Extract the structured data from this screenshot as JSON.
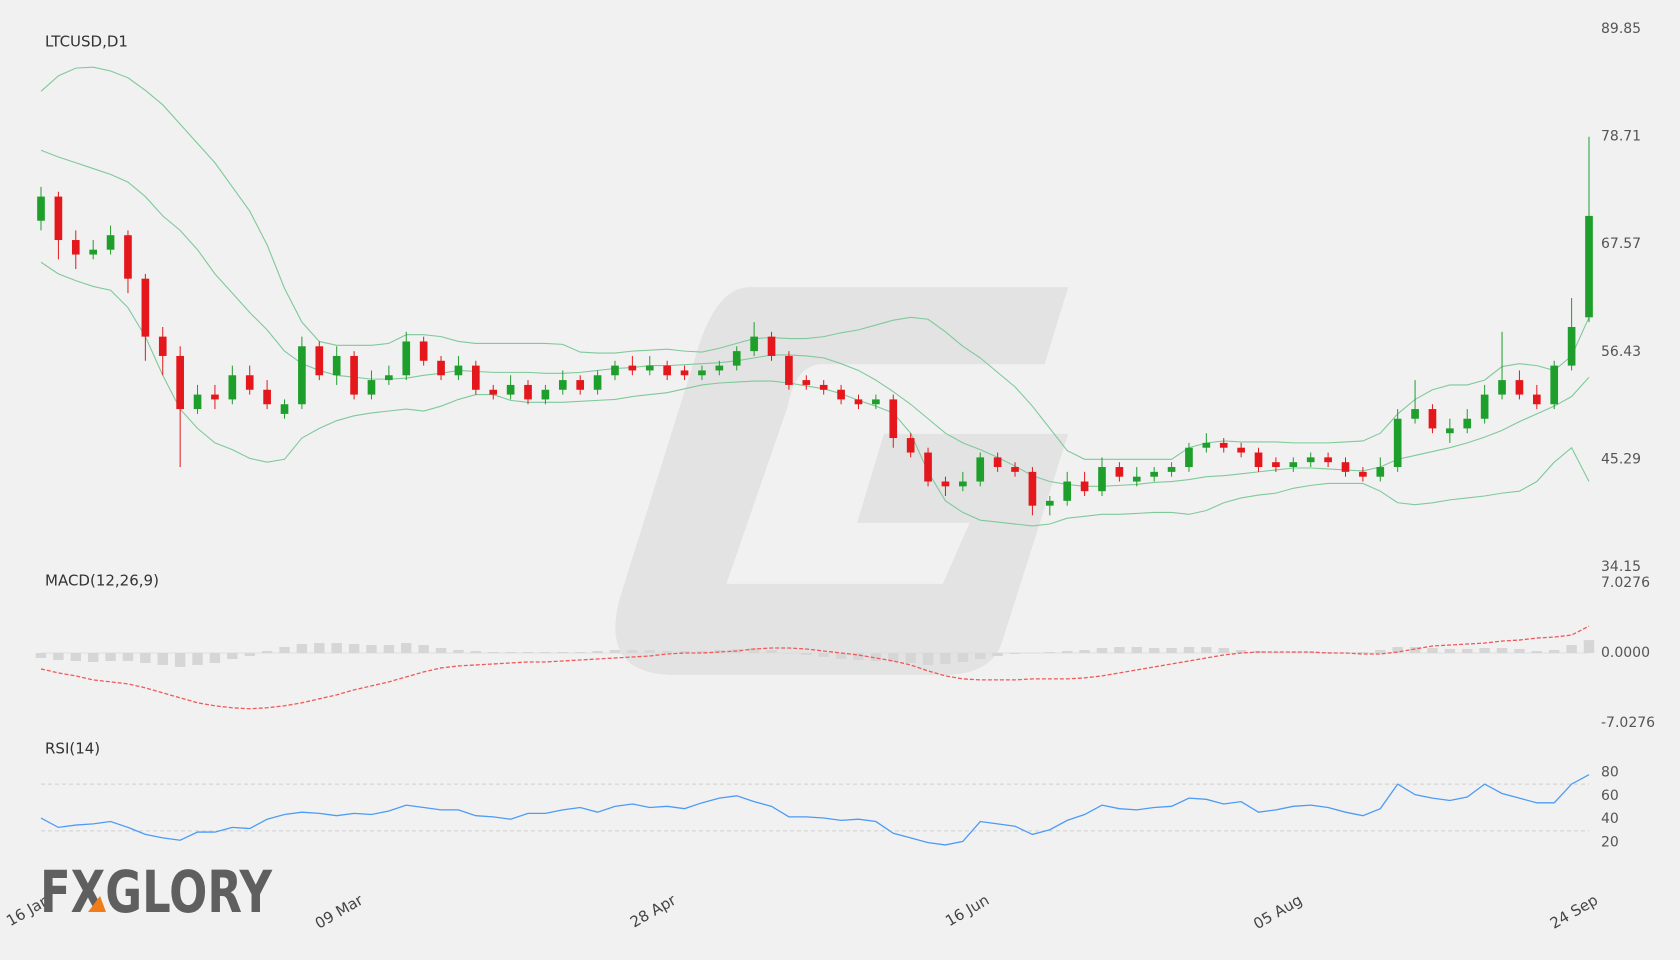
{
  "chart_data": [
    {
      "type": "candlestick",
      "title": "LTCUSD,D1",
      "categories": [
        "16 Jan",
        null,
        null,
        null,
        null,
        null,
        null,
        null,
        null,
        null,
        null,
        null,
        null,
        null,
        null,
        null,
        null,
        null,
        "09 Mar",
        null,
        null,
        null,
        null,
        null,
        null,
        null,
        null,
        null,
        null,
        null,
        null,
        null,
        null,
        null,
        null,
        null,
        "28 Apr",
        null,
        null,
        null,
        null,
        null,
        null,
        null,
        null,
        null,
        null,
        null,
        null,
        null,
        null,
        null,
        null,
        null,
        "16 Jun",
        null,
        null,
        null,
        null,
        null,
        null,
        null,
        null,
        null,
        null,
        null,
        null,
        null,
        null,
        null,
        null,
        null,
        "05 Aug",
        null,
        null,
        null,
        null,
        null,
        null,
        null,
        null,
        null,
        null,
        null,
        null,
        null,
        null,
        null,
        null,
        "24 Sep"
      ],
      "open": [
        70,
        72.5,
        68,
        66.5,
        67,
        68.5,
        64,
        58,
        56,
        50.5,
        52,
        51.5,
        54,
        52.5,
        50,
        51,
        57,
        54,
        56,
        52,
        53.5,
        54,
        57.5,
        55.5,
        54,
        55,
        52.5,
        52,
        53,
        51.5,
        52.5,
        53.5,
        52.5,
        54,
        55,
        54.5,
        55,
        54.5,
        54,
        54.5,
        55,
        56.5,
        58,
        56,
        53.5,
        53,
        52.5,
        51.5,
        51,
        51.5,
        47.5,
        46,
        43,
        42.5,
        43,
        45.5,
        44.5,
        44,
        40.5,
        41,
        43,
        42,
        44.5,
        43,
        43.5,
        44,
        44.5,
        46.5,
        47,
        46.5,
        46,
        45,
        44.5,
        45,
        45.5,
        45,
        44,
        43.5,
        44.5,
        49.5,
        50.5,
        48,
        48.5,
        49.5,
        52,
        53.5,
        52,
        51,
        55,
        60
      ],
      "high": [
        73.5,
        73,
        69,
        68,
        69.5,
        69,
        64.5,
        59,
        57,
        53,
        53,
        55,
        55,
        53.5,
        51.5,
        58,
        57.5,
        57,
        56.5,
        54.5,
        55,
        58.5,
        58,
        56,
        56,
        55.5,
        53,
        54,
        53.5,
        53,
        54.5,
        54,
        54.5,
        55.5,
        56,
        56,
        55.5,
        55,
        55,
        55.5,
        57,
        59.5,
        58.5,
        56.5,
        54,
        53.5,
        53,
        52,
        52,
        52,
        48,
        46.5,
        43.5,
        44,
        46,
        46,
        45,
        44.5,
        41.5,
        44,
        44,
        45.5,
        45,
        44.5,
        44.5,
        45,
        47,
        48,
        47.5,
        47,
        46.5,
        45.5,
        45.5,
        46,
        46,
        45.5,
        44.5,
        45.5,
        50.5,
        53.5,
        51,
        49.5,
        50.5,
        53,
        58.5,
        54.5,
        53,
        55.5,
        62,
        78.7
      ],
      "low": [
        69,
        66,
        65,
        66,
        66.5,
        62.5,
        55.5,
        54,
        44.5,
        50,
        50.5,
        51,
        52,
        50.5,
        49.5,
        50.5,
        53.5,
        53,
        51.5,
        51.5,
        53,
        53.5,
        55,
        53.5,
        53.5,
        52,
        51.5,
        51.5,
        51,
        51,
        52,
        52,
        52,
        53.5,
        54,
        54,
        53.5,
        53.5,
        53.5,
        54,
        54.5,
        56,
        55.5,
        52.5,
        52.5,
        52,
        51,
        50.5,
        50.5,
        46.5,
        45.5,
        42.5,
        41.5,
        42,
        42.5,
        44,
        43.5,
        39.5,
        39.5,
        40.5,
        41.5,
        41.5,
        43,
        42.5,
        43,
        43.5,
        44,
        46,
        46,
        45.5,
        44,
        44,
        44,
        44.5,
        44.5,
        43.5,
        43,
        43,
        44,
        49,
        48,
        47,
        48,
        49,
        51.5,
        51.5,
        50.5,
        50.5,
        54.5,
        59.5
      ],
      "close": [
        72.5,
        68,
        66.5,
        67,
        68.5,
        64,
        58,
        56,
        50.5,
        52,
        51.5,
        54,
        52.5,
        51,
        51,
        57,
        54,
        56,
        52,
        53.5,
        54,
        57.5,
        55.5,
        54,
        55,
        52.5,
        52,
        53,
        51.5,
        52.5,
        53.5,
        52.5,
        54,
        55,
        54.5,
        55,
        54,
        54,
        54.5,
        55,
        56.5,
        58,
        56,
        53,
        53,
        52.5,
        51.5,
        51,
        51.5,
        47.5,
        46,
        43,
        42.5,
        43,
        45.5,
        44.5,
        44,
        40.5,
        41,
        43,
        42,
        44.5,
        43.5,
        43.5,
        44,
        44.5,
        46.5,
        47,
        46.5,
        46,
        44.5,
        44.5,
        45,
        45.5,
        45,
        44,
        43.5,
        44.5,
        49.5,
        50.5,
        48.5,
        48.5,
        49.5,
        52,
        53.5,
        52,
        51,
        55,
        59,
        70.5
      ],
      "up_color": "#1e9e2a",
      "down_color": "#e3171c",
      "bands": [
        {
          "color": "#7fc99a",
          "values": [
            83.4,
            85,
            85.8,
            85.9,
            85.5,
            84.8,
            83.5,
            82,
            80,
            78,
            76,
            73.5,
            71,
            67.5,
            63,
            59.5,
            57.5,
            57.1,
            57.1,
            57.1,
            57.3,
            58.2,
            58.2,
            58,
            57.5,
            57.3,
            57.3,
            57.3,
            57.3,
            57.3,
            57.2,
            56.4,
            56.3,
            56.3,
            56.5,
            56.6,
            56.7,
            56.5,
            56.4,
            56.8,
            57.3,
            57.8,
            57.9,
            57.8,
            57.8,
            58,
            58.4,
            58.7,
            59.2,
            59.7,
            60,
            59.8,
            58.5,
            57,
            55.8,
            54.3,
            52.8,
            50.8,
            48.5,
            46.2,
            45.3,
            45.3,
            45.3,
            45.3,
            45.3,
            45.3,
            46.5,
            47,
            47.2,
            47.1,
            47.1,
            47.1,
            47,
            47,
            47,
            47.1,
            47.2,
            48,
            50,
            51.5,
            52.5,
            53,
            53,
            53.5,
            54.9,
            55.2,
            55,
            54.5,
            56,
            60
          ]
        },
        {
          "color": "#7fc99a",
          "values": [
            77.3,
            76.6,
            76,
            75.4,
            74.8,
            74,
            72.5,
            70.5,
            69,
            67,
            64.5,
            62.5,
            60.5,
            58.7,
            56.5,
            55.2,
            54.5,
            54,
            53.8,
            53.6,
            53.6,
            53.7,
            54,
            54.2,
            54.5,
            54.4,
            54.3,
            54.3,
            54.3,
            54.2,
            54.2,
            54.3,
            54.5,
            54.7,
            54.8,
            55,
            55,
            55.1,
            55.2,
            55.3,
            55.5,
            55.8,
            56.1,
            56.1,
            56,
            55.8,
            55.2,
            54.5,
            53.5,
            52.3,
            51,
            49.5,
            48,
            47,
            46.3,
            45.5,
            44.6,
            43.6,
            43,
            42.7,
            42.5,
            42.5,
            42.6,
            42.7,
            42.9,
            43,
            43.2,
            43.5,
            43.6,
            43.8,
            44,
            44.2,
            44.4,
            44.4,
            44.3,
            44.2,
            44.1,
            44.5,
            45.3,
            45.7,
            46.1,
            46.5,
            47,
            47.6,
            48.3,
            49.2,
            50,
            50.8,
            51.8,
            53.8
          ]
        },
        {
          "color": "#7fc99a",
          "values": [
            65.7,
            64.5,
            63.8,
            63.2,
            62.8,
            61,
            58,
            54,
            50.5,
            48.5,
            47,
            46.3,
            45.4,
            45,
            45.3,
            47.5,
            48.5,
            49.3,
            49.8,
            50.1,
            50.3,
            50.5,
            50.3,
            50.8,
            51.5,
            52,
            52,
            51.4,
            51.2,
            51.2,
            51.2,
            51.3,
            51.4,
            51.5,
            51.8,
            52,
            52.2,
            52.6,
            53,
            53.2,
            53.3,
            53.4,
            53.4,
            53.2,
            52.9,
            52.6,
            52.1,
            51.4,
            50.8,
            50.1,
            48,
            44,
            41,
            39.8,
            39,
            38.8,
            38.6,
            38.4,
            38.6,
            39.2,
            39.4,
            39.6,
            39.6,
            39.7,
            39.8,
            39.8,
            39.6,
            40,
            40.8,
            41.3,
            41.6,
            41.8,
            42.3,
            42.6,
            42.8,
            42.8,
            42.8,
            42,
            40.8,
            40.6,
            40.8,
            41.1,
            41.3,
            41.5,
            41.8,
            42,
            43,
            45,
            46.5,
            43
          ]
        }
      ],
      "ylim": [
        34.15,
        89.85
      ],
      "yticks": [
        34.15,
        45.29,
        56.43,
        67.57,
        78.71,
        89.85
      ]
    },
    {
      "type": "combo",
      "title": "MACD(12,26,9)",
      "series": [
        {
          "style": "bar",
          "color": "#d6d6d6",
          "values": [
            -0.5,
            -0.7,
            -0.8,
            -0.9,
            -0.8,
            -0.8,
            -1,
            -1.2,
            -1.4,
            -1.2,
            -1,
            -0.6,
            -0.3,
            0.2,
            0.6,
            0.9,
            1,
            1,
            0.9,
            0.8,
            0.8,
            1,
            0.8,
            0.5,
            0.3,
            0.2,
            0.1,
            0.1,
            0.1,
            0.1,
            0.1,
            0.1,
            0.2,
            0.3,
            0.3,
            0.3,
            0.2,
            0.2,
            0.2,
            0.3,
            0.4,
            0.5,
            0.3,
            0,
            -0.2,
            -0.4,
            -0.6,
            -0.7,
            -0.8,
            -0.9,
            -1,
            -1.2,
            -1.1,
            -0.9,
            -0.6,
            -0.3,
            -0.1,
            0,
            0.1,
            0.2,
            0.3,
            0.5,
            0.6,
            0.6,
            0.5,
            0.5,
            0.6,
            0.6,
            0.5,
            0.3,
            0.2,
            0.1,
            0.1,
            0.1,
            0.1,
            0,
            0.1,
            0.3,
            0.6,
            0.6,
            0.5,
            0.4,
            0.4,
            0.5,
            0.5,
            0.4,
            0.2,
            0.3,
            0.8,
            1.3
          ]
        },
        {
          "style": "dashed",
          "color": "#f05a5a",
          "values": [
            -1.6,
            -2,
            -2.3,
            -2.7,
            -2.9,
            -3.1,
            -3.5,
            -4,
            -4.5,
            -5,
            -5.3,
            -5.5,
            -5.6,
            -5.5,
            -5.3,
            -5,
            -4.6,
            -4.2,
            -3.7,
            -3.3,
            -2.9,
            -2.4,
            -1.9,
            -1.5,
            -1.3,
            -1.2,
            -1.1,
            -1,
            -0.9,
            -0.9,
            -0.8,
            -0.7,
            -0.6,
            -0.5,
            -0.4,
            -0.3,
            -0.1,
            0,
            0,
            0.1,
            0.2,
            0.4,
            0.5,
            0.5,
            0.4,
            0.2,
            0,
            -0.2,
            -0.5,
            -0.8,
            -1.2,
            -1.8,
            -2.3,
            -2.6,
            -2.7,
            -2.7,
            -2.7,
            -2.6,
            -2.6,
            -2.6,
            -2.5,
            -2.3,
            -2,
            -1.7,
            -1.4,
            -1.1,
            -0.8,
            -0.5,
            -0.2,
            0,
            0.1,
            0.1,
            0.1,
            0.1,
            0,
            0,
            -0.1,
            -0.1,
            0.1,
            0.4,
            0.7,
            0.8,
            0.9,
            1,
            1.2,
            1.3,
            1.5,
            1.6,
            1.8,
            2.7
          ]
        }
      ],
      "baseline": 0,
      "ylim": [
        -7.0276,
        7.0276
      ],
      "yticks": [
        -7.0276,
        {
          "value": 0,
          "label": "0.0000"
        },
        7.0276
      ]
    },
    {
      "type": "line",
      "title": "RSI(14)",
      "series": [
        {
          "style": "line",
          "color": "#4d9bf5",
          "values": [
            41,
            33,
            35,
            36,
            38,
            33,
            27,
            24,
            22,
            29,
            29,
            33,
            32,
            40,
            44,
            46,
            45,
            43,
            45,
            44,
            47,
            52,
            50,
            48,
            48,
            43,
            42,
            40,
            45,
            45,
            48,
            50,
            46,
            51,
            53,
            50,
            51,
            49,
            54,
            58,
            60,
            55,
            51,
            42,
            42,
            41,
            39,
            40,
            38,
            28,
            24,
            20,
            18,
            21,
            38,
            36,
            34,
            27,
            31,
            39,
            44,
            52,
            49,
            48,
            50,
            51,
            58,
            57,
            53,
            55,
            46,
            48,
            51,
            52,
            50,
            46,
            43,
            49,
            70,
            61,
            58,
            56,
            59,
            70,
            62,
            58,
            54,
            54,
            70,
            78
          ]
        }
      ],
      "levels": [
        70,
        30
      ],
      "ylim": [
        0,
        100
      ],
      "yticks": [
        20,
        40,
        60,
        80
      ]
    }
  ],
  "watermark": "FXGLORY"
}
